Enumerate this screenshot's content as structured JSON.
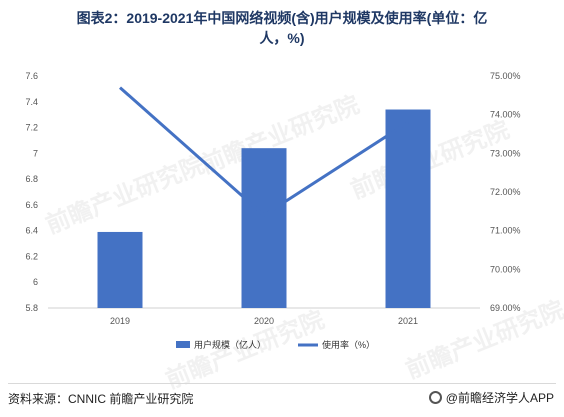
{
  "title_line1": "图表2：2019-2021年中国网络视频(含)用户规模及使用率(单位：亿",
  "title_line2": "人，%)",
  "source": "资料来源：CNNIC 前瞻产业研究院",
  "brand": "@前瞻经济学人APP",
  "watermark": "前瞻产业研究院",
  "chart_data": {
    "type": "bar+line",
    "categories": [
      "2019",
      "2020",
      "2021"
    ],
    "series": [
      {
        "name": "用户规模（亿人）",
        "type": "bar",
        "axis": "left",
        "values": [
          6.39,
          7.04,
          7.34
        ],
        "color": "#4472c4"
      },
      {
        "name": "使用率（%）",
        "type": "line",
        "axis": "right",
        "values": [
          74.7,
          71.4,
          73.8
        ],
        "color": "#4472c4"
      }
    ],
    "y_left": {
      "min": 5.8,
      "max": 7.6,
      "ticks": [
        "7.6",
        "7.4",
        "7.2",
        "7",
        "6.8",
        "6.6",
        "6.4",
        "6.2",
        "6",
        "5.8"
      ]
    },
    "y_right": {
      "min": 69,
      "max": 75,
      "ticks": [
        "75.00%",
        "74.00%",
        "73.00%",
        "72.00%",
        "71.00%",
        "70.00%",
        "69.00%"
      ]
    },
    "legend_position": "bottom",
    "grid": false
  }
}
